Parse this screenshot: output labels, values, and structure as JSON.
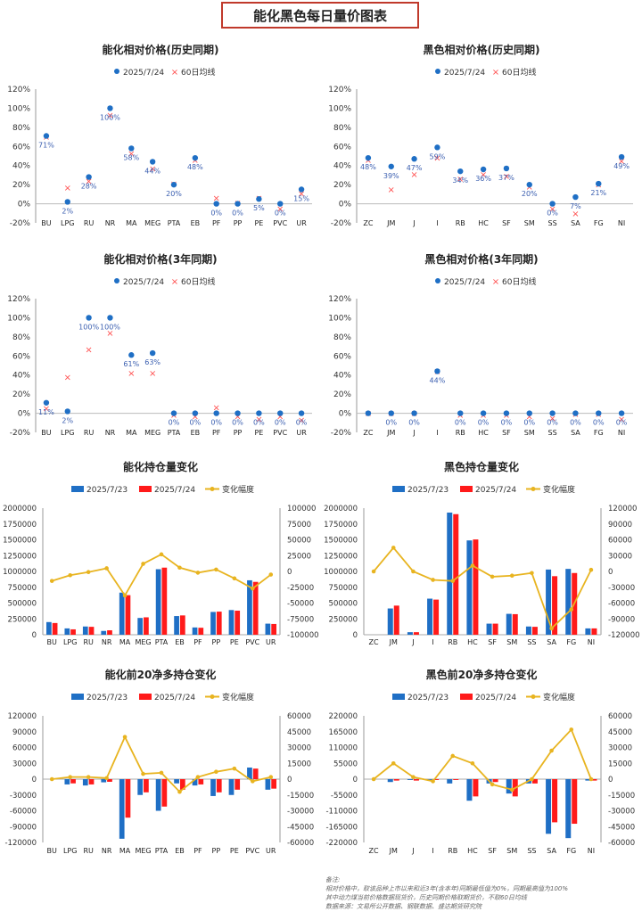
{
  "page_title": "能化黑色每日量价图表",
  "notes": [
    "备注:",
    "相对价格中，取该品种上市以来和近3年(含本年)同期最低值为0%，同期最高值为100%",
    "其中动力煤当前价格数据现货价，历史同期价格取期货价，不取60日均线",
    "数据来源：文易所公开数据、钢联数据、盛达期货研究院"
  ],
  "colors": {
    "blue": "#1f6fc5",
    "red": "#ff1a1a",
    "gold": "#e8b420",
    "cross": "#ff4d4d"
  },
  "chart_data": [
    {
      "id": "c1",
      "type": "scatter",
      "title": "能化相对价格(历史同期)",
      "legend": [
        "2025/7/24",
        "60日均线"
      ],
      "categories": [
        "BU",
        "LPG",
        "RU",
        "NR",
        "MA",
        "MEG",
        "PTA",
        "EB",
        "PF",
        "PP",
        "PE",
        "PVC",
        "UR"
      ],
      "values": [
        71,
        2,
        28,
        100,
        58,
        44,
        20,
        48,
        0,
        0,
        5,
        0,
        15
      ],
      "ma60": [
        70,
        17,
        24,
        93,
        53,
        37,
        21,
        46,
        6,
        1,
        6,
        -5,
        11
      ],
      "labels": [
        "71%",
        "2%",
        "28%",
        "100%",
        "58%",
        "44%",
        "20%",
        "48%",
        "0%",
        "0%",
        "5%",
        "0%",
        "15%"
      ],
      "yticks": [
        "120%",
        "100%",
        "80%",
        "60%",
        "40%",
        "20%",
        "0%",
        "-20%"
      ],
      "ylim": [
        -20,
        120
      ]
    },
    {
      "id": "c2",
      "type": "scatter",
      "title": "黑色相对价格(历史同期)",
      "legend": [
        "2025/7/24",
        "60日均线"
      ],
      "categories": [
        "ZC",
        "JM",
        "J",
        "I",
        "RB",
        "HC",
        "SF",
        "SM",
        "SS",
        "SA",
        "FG",
        "NI"
      ],
      "values": [
        48,
        39,
        47,
        59,
        34,
        36,
        37,
        20,
        0,
        7,
        21,
        49
      ],
      "ma60": [
        46,
        15,
        31,
        48,
        26,
        31,
        29,
        18,
        -5,
        -10,
        20,
        45
      ],
      "labels": [
        "48%",
        "39%",
        "47%",
        "59%",
        "34%",
        "36%",
        "37%",
        "20%",
        "0%",
        "7%",
        "21%",
        "49%"
      ],
      "yticks": [
        "120%",
        "100%",
        "80%",
        "60%",
        "40%",
        "20%",
        "0%",
        "-20%"
      ],
      "ylim": [
        -20,
        120
      ]
    },
    {
      "id": "c3",
      "type": "scatter",
      "title": "能化相对价格(3年同期)",
      "legend": [
        "2025/7/24",
        "60日均线"
      ],
      "categories": [
        "BU",
        "LPG",
        "RU",
        "NR",
        "MA",
        "MEG",
        "PTA",
        "EB",
        "PF",
        "PP",
        "PE",
        "PVC",
        "UR"
      ],
      "values": [
        11,
        2,
        100,
        100,
        61,
        63,
        0,
        0,
        0,
        0,
        0,
        0,
        0
      ],
      "ma60": [
        5,
        38,
        67,
        84,
        42,
        42,
        -2,
        -3,
        6,
        -3,
        -6,
        -3,
        -7
      ],
      "labels": [
        "11%",
        "2%",
        "100%",
        "100%",
        "61%",
        "63%",
        "0%",
        "0%",
        "0%",
        "0%",
        "0%",
        "0%",
        "0%"
      ],
      "yticks": [
        "120%",
        "100%",
        "80%",
        "60%",
        "40%",
        "20%",
        "0%",
        "-20%"
      ],
      "ylim": [
        -20,
        120
      ]
    },
    {
      "id": "c4",
      "type": "scatter",
      "title": "黑色相对价格(3年同期)",
      "legend": [
        "2025/7/24",
        "60日均线"
      ],
      "categories": [
        "ZC",
        "JM",
        "J",
        "I",
        "RB",
        "HC",
        "SF",
        "SM",
        "SS",
        "SA",
        "FG",
        "NI"
      ],
      "values": [
        0,
        0,
        0,
        44,
        0,
        0,
        0,
        0,
        0,
        0,
        0,
        0
      ],
      "ma60": [
        0,
        0,
        0,
        44,
        -2,
        -2,
        -2,
        -3,
        -5,
        -1,
        -1,
        -6
      ],
      "labels": [
        "",
        "0%",
        "0%",
        "44%",
        "0%",
        "0%",
        "0%",
        "0%",
        "0%",
        "0%",
        "0%",
        "0%"
      ],
      "yticks": [
        "120%",
        "100%",
        "80%",
        "60%",
        "40%",
        "20%",
        "0%",
        "-20%"
      ],
      "ylim": [
        -20,
        120
      ]
    },
    {
      "id": "c5",
      "type": "bar",
      "title": "能化持仓量变化",
      "legend": [
        "2025/7/23",
        "2025/7/24",
        "变化幅度"
      ],
      "categories": [
        "BU",
        "LPG",
        "RU",
        "NR",
        "MA",
        "MEG",
        "PTA",
        "EB",
        "PF",
        "PP",
        "PE",
        "PVC",
        "UR"
      ],
      "series": [
        {
          "name": "2025/7/23",
          "values": [
            200000,
            100000,
            130000,
            60000,
            665000,
            265000,
            1035000,
            295000,
            115000,
            360000,
            390000,
            860000,
            175000
          ]
        },
        {
          "name": "2025/7/24",
          "values": [
            185000,
            85000,
            125000,
            70000,
            625000,
            275000,
            1060000,
            305000,
            110000,
            365000,
            380000,
            835000,
            170000
          ]
        }
      ],
      "change": [
        -15000,
        -6000,
        -1000,
        5000,
        -38000,
        12000,
        27000,
        6000,
        -2000,
        3000,
        -11000,
        -27000,
        -5000
      ],
      "yticks_left": [
        "2000000",
        "1750000",
        "1500000",
        "1250000",
        "1000000",
        "750000",
        "500000",
        "250000",
        "0"
      ],
      "yticks_right": [
        "100000",
        "75000",
        "50000",
        "25000",
        "0",
        "-25000",
        "-50000",
        "-75000",
        "-100000"
      ],
      "ylim": [
        0,
        2000000
      ],
      "y2lim": [
        -100000,
        100000
      ]
    },
    {
      "id": "c6",
      "type": "bar",
      "title": "黑色持仓量变化",
      "legend": [
        "2025/7/23",
        "2025/7/24",
        "变化幅度"
      ],
      "categories": [
        "ZC",
        "JM",
        "J",
        "I",
        "RB",
        "HC",
        "SF",
        "SM",
        "SS",
        "SA",
        "FG",
        "NI"
      ],
      "series": [
        {
          "name": "2025/7/23",
          "values": [
            0,
            415000,
            40000,
            570000,
            1930000,
            1490000,
            175000,
            330000,
            130000,
            1030000,
            1040000,
            100000
          ]
        },
        {
          "name": "2025/7/24",
          "values": [
            0,
            460000,
            40000,
            555000,
            1905000,
            1505000,
            175000,
            325000,
            125000,
            925000,
            975000,
            100000
          ]
        }
      ],
      "change": [
        0,
        45000,
        0,
        -16000,
        -18000,
        11000,
        -10000,
        -8000,
        -3000,
        -108000,
        -72000,
        3000
      ],
      "yticks_left": [
        "2000000",
        "1750000",
        "1500000",
        "1250000",
        "1000000",
        "750000",
        "500000",
        "250000",
        "0"
      ],
      "yticks_right": [
        "120000",
        "90000",
        "60000",
        "30000",
        "0",
        "-30000",
        "-60000",
        "-90000",
        "-120000"
      ],
      "ylim": [
        0,
        2000000
      ],
      "y2lim": [
        -120000,
        120000
      ]
    },
    {
      "id": "c7",
      "type": "bar",
      "title": "能化前20净多持仓变化",
      "legend": [
        "2025/7/23",
        "2025/7/24",
        "变化幅度"
      ],
      "categories": [
        "BU",
        "LPG",
        "RU",
        "NR",
        "MA",
        "MEG",
        "PTA",
        "EB",
        "PF",
        "PP",
        "PE",
        "PVC",
        "UR"
      ],
      "series": [
        {
          "name": "2025/7/23",
          "values": [
            0,
            -10000,
            -12000,
            -6000,
            -113000,
            -30000,
            -60000,
            -8000,
            -12000,
            -32000,
            -30000,
            22000,
            -20000
          ]
        },
        {
          "name": "2025/7/24",
          "values": [
            0,
            -8000,
            -10000,
            -5000,
            -73000,
            -25000,
            -52000,
            -20000,
            -10000,
            -25000,
            -20000,
            20000,
            -18000
          ]
        }
      ],
      "change": [
        0,
        2000,
        2000,
        1000,
        40000,
        5000,
        6000,
        -12000,
        2000,
        7000,
        10000,
        -2000,
        2000
      ],
      "yticks_left": [
        "120000",
        "90000",
        "60000",
        "30000",
        "0",
        "-30000",
        "-60000",
        "-90000",
        "-120000"
      ],
      "yticks_right": [
        "60000",
        "45000",
        "30000",
        "15000",
        "0",
        "-15000",
        "-30000",
        "-45000",
        "-60000"
      ],
      "ylim": [
        -120000,
        120000
      ],
      "y2lim": [
        -60000,
        60000
      ]
    },
    {
      "id": "c8",
      "type": "bar",
      "title": "黑色前20净多持仓变化",
      "legend": [
        "2025/7/23",
        "2025/7/24",
        "变化幅度"
      ],
      "categories": [
        "ZC",
        "JM",
        "J",
        "I",
        "RB",
        "HC",
        "SF",
        "SM",
        "SS",
        "SA",
        "FG",
        "NI"
      ],
      "series": [
        {
          "name": "2025/7/23",
          "values": [
            0,
            -10000,
            -3000,
            -5000,
            -15000,
            -75000,
            -15000,
            -50000,
            -15000,
            -190000,
            -205000,
            -5000
          ]
        },
        {
          "name": "2025/7/24",
          "values": [
            0,
            -5000,
            -5000,
            -3000,
            -3000,
            -60000,
            -10000,
            -60000,
            -15000,
            -150000,
            -155000,
            -5000
          ]
        }
      ],
      "change": [
        0,
        15000,
        2000,
        -2000,
        22000,
        15000,
        -5000,
        -10000,
        0,
        27000,
        47000,
        0
      ],
      "yticks_left": [
        "220000",
        "165000",
        "110000",
        "55000",
        "0",
        "-55000",
        "-110000",
        "-165000",
        "-220000"
      ],
      "yticks_right": [
        "60000",
        "45000",
        "30000",
        "15000",
        "0",
        "-15000",
        "-30000",
        "-45000",
        "-60000"
      ],
      "ylim": [
        -220000,
        220000
      ],
      "y2lim": [
        -60000,
        60000
      ]
    }
  ]
}
